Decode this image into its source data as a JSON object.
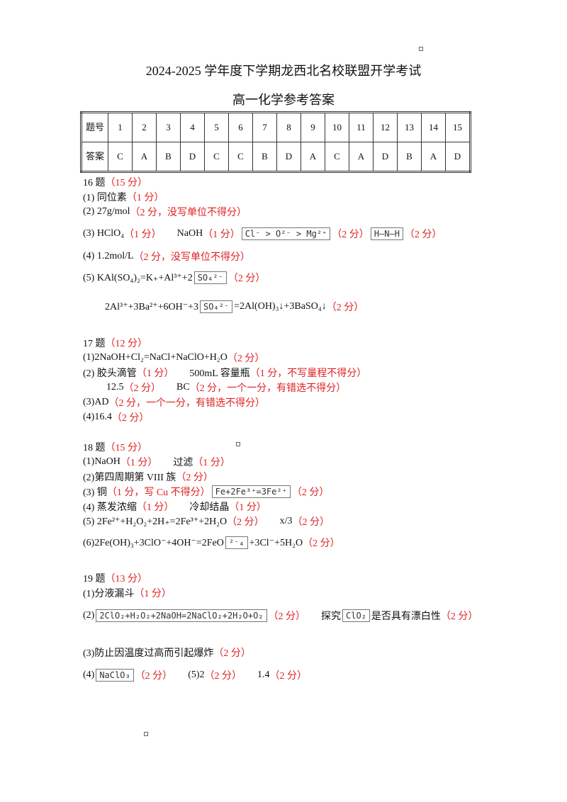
{
  "header": {
    "title": "2024-2025 学年度下学期龙西北名校联盟开学考试",
    "subtitle": "高一化学参考答案"
  },
  "table": {
    "rows": [
      [
        "题号",
        "1",
        "2",
        "3",
        "4",
        "5",
        "6",
        "7",
        "8",
        "9",
        "10",
        "11",
        "12",
        "13",
        "14",
        "15"
      ],
      [
        "答案",
        "C",
        "A",
        "B",
        "D",
        "C",
        "C",
        "B",
        "D",
        "A",
        "C",
        "A",
        "D",
        "B",
        "A",
        "D"
      ]
    ]
  },
  "sections": [
    {
      "lines": [
        [
          {
            "text": "16 题"
          },
          {
            "text": "（15 分）",
            "color": "red"
          }
        ],
        [
          {
            "text": "(1) 同位素"
          },
          {
            "text": "（1 分）",
            "color": "red"
          }
        ],
        [
          {
            "text": "(2)   27g/mol"
          },
          {
            "text": "（2 分，没写单位不得分）",
            "color": "red"
          }
        ],
        [
          {
            "text": "(3)   HClO₄"
          },
          {
            "text": "（1 分）",
            "color": "red"
          },
          {
            "text": "NaOH"
          },
          {
            "text": "（1 分）",
            "color": "red"
          },
          {
            "text": "Cl⁻ > O²⁻ > Mg²⁺",
            "box": true
          },
          {
            "text": "（2 分）",
            "color": "red"
          },
          {
            "text": "H–N–H",
            "box": true
          },
          {
            "text": "（2 分）",
            "color": "red"
          }
        ],
        [
          {
            "text": "(4)   1.2mol/L"
          },
          {
            "text": "（2 分，没写单位不得分）",
            "color": "red"
          }
        ],
        [
          {
            "text": "(5)   KAl(SO₄)₂=K₊+Al³⁺+2"
          },
          {
            "text": "SO₄²⁻",
            "box": true
          },
          {
            "text": "（2 分）",
            "color": "red"
          }
        ],
        [
          {
            "text": "2Al³⁺+3Ba²⁺+6OH⁻+3"
          },
          {
            "text": "SO₄²⁻",
            "box": true
          },
          {
            "text": "=2Al(OH)₃↓+3BaSO₄↓"
          },
          {
            "text": "（2 分）",
            "color": "red"
          }
        ]
      ]
    },
    {
      "lines": [
        [
          {
            "text": "17 题"
          },
          {
            "text": "（12 分）",
            "color": "red"
          }
        ],
        [
          {
            "text": "(1)2NaOH+Cl₂=NaCl+NaClO+H₂O"
          },
          {
            "text": "（2 分）",
            "color": "red"
          }
        ],
        [
          {
            "text": "(2) 胶头滴管"
          },
          {
            "text": "（1 分）",
            "color": "red"
          },
          {
            "text": "500mL 容量瓶"
          },
          {
            "text": "（1 分，不写量程不得分）",
            "color": "red"
          }
        ],
        [
          {
            "text": "12.5"
          },
          {
            "text": "（2 分）",
            "color": "red"
          },
          {
            "text": "BC"
          },
          {
            "text": "（2 分，一个一分，有错选不得分）",
            "color": "red"
          }
        ],
        [
          {
            "text": "(3)AD"
          },
          {
            "text": "（2 分，一个一分，有错选不得分）",
            "color": "red"
          }
        ],
        [
          {
            "text": "(4)16.4"
          },
          {
            "text": "（2 分）",
            "color": "red"
          }
        ]
      ]
    },
    {
      "lines": [
        [
          {
            "text": "18 题"
          },
          {
            "text": "（15 分）",
            "color": "red"
          }
        ],
        [
          {
            "text": "(1)NaOH"
          },
          {
            "text": "（1 分）",
            "color": "red"
          },
          {
            "text": "过滤"
          },
          {
            "text": "（1 分）",
            "color": "red"
          }
        ],
        [
          {
            "text": "(2)第四周期第  VIII 族"
          },
          {
            "text": "（2 分）",
            "color": "red"
          }
        ],
        [
          {
            "text": "(3)  铜"
          },
          {
            "text": "（1 分，写 Cu 不得分）",
            "color": "red"
          },
          {
            "text": "Fe+2Fe³⁺=3Fe²⁺",
            "box": true
          },
          {
            "text": "（2 分）",
            "color": "red"
          }
        ],
        [
          {
            "text": "(4)  蒸发浓缩"
          },
          {
            "text": "（1 分）",
            "color": "red"
          },
          {
            "text": "冷却结晶"
          },
          {
            "text": "（1 分）",
            "color": "red"
          }
        ],
        [
          {
            "text": "(5) 2Fe²⁺+H₂O₂+2H₊=2Fe³⁺+2H₂O"
          },
          {
            "text": "（2 分）",
            "color": "red"
          },
          {
            "text": "x/3"
          },
          {
            "text": "（2 分）",
            "color": "red"
          }
        ],
        [
          {
            "text": "(6)2Fe(OH)₃+3ClO⁻+4OH⁻=2FeO"
          },
          {
            "text": "²⁻₄",
            "box": true
          },
          {
            "text": "+3Cl⁻+5H₂O"
          },
          {
            "text": "（2 分）",
            "color": "red"
          }
        ]
      ]
    },
    {
      "lines": [
        [
          {
            "text": "19 题"
          },
          {
            "text": "（13 分）",
            "color": "red"
          }
        ],
        [
          {
            "text": "(1)分液漏斗"
          },
          {
            "text": "（1 分）",
            "color": "red"
          }
        ],
        [
          {
            "text": "(2)"
          },
          {
            "text": "2ClO₂+H₂O₂+2NaOH=2NaClO₂+2H₂O+O₂",
            "box": true
          },
          {
            "text": "（2 分）",
            "color": "red"
          },
          {
            "text": "探究"
          },
          {
            "text": "ClO₂",
            "box": true
          },
          {
            "text": "是否具有漂白性"
          },
          {
            "text": "（2 分）",
            "color": "red"
          }
        ],
        [
          {
            "text": "(3)防止因温度过高而引起爆炸"
          },
          {
            "text": "（2 分）",
            "color": "red"
          }
        ],
        [
          {
            "text": "(4)"
          },
          {
            "text": "NaClO₃",
            "box": true
          },
          {
            "text": "（2 分）",
            "color": "red"
          },
          {
            "text": "(5)2"
          },
          {
            "text": "（2 分）",
            "color": "red"
          },
          {
            "text": "1.4"
          },
          {
            "text": "（2 分）",
            "color": "red"
          }
        ]
      ]
    }
  ]
}
